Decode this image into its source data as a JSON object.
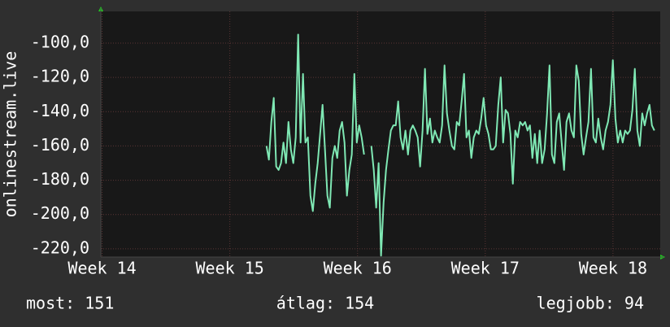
{
  "chart_data": {
    "type": "line",
    "ylabel": "onlinestream.live",
    "footer": [
      "most: 151",
      "átlag: 154",
      "legjobb: 94"
    ],
    "xlim": [
      13.99,
      18.37
    ],
    "ylim": [
      -224.8,
      -81.5
    ],
    "xticks": [
      {
        "value": 14,
        "label": "Week 14"
      },
      {
        "value": 15,
        "label": "Week 15"
      },
      {
        "value": 16,
        "label": "Week 16"
      },
      {
        "value": 17,
        "label": "Week 17"
      },
      {
        "value": 18,
        "label": "Week 18"
      }
    ],
    "yticks": [
      {
        "value": -100,
        "label": "-100,0"
      },
      {
        "value": -120,
        "label": "-120,0"
      },
      {
        "value": -140,
        "label": "-140,0"
      },
      {
        "value": -160,
        "label": "-160,0"
      },
      {
        "value": -180,
        "label": "-180,0"
      },
      {
        "value": -200,
        "label": "-200,0"
      },
      {
        "value": -220,
        "label": "-220,0"
      }
    ],
    "grid": true,
    "x": [
      15.287,
      15.306,
      15.325,
      15.344,
      15.363,
      15.382,
      15.401,
      15.42,
      15.44,
      15.459,
      15.478,
      15.497,
      15.516,
      15.535,
      15.554,
      15.573,
      15.592,
      15.611,
      15.631,
      15.65,
      15.669,
      15.688,
      15.707,
      15.726,
      15.745,
      15.764,
      15.783,
      15.803,
      15.822,
      15.841,
      15.86,
      15.879,
      15.898,
      15.917,
      15.936,
      15.955,
      15.975,
      15.994,
      16.013,
      16.032,
      16.051,
      16.083,
      16.108,
      16.127,
      16.146,
      16.165,
      16.184,
      16.204,
      16.223,
      16.242,
      16.261,
      16.28,
      16.299,
      16.318,
      16.337,
      16.356,
      16.375,
      16.395,
      16.414,
      16.433,
      16.452,
      16.471,
      16.49,
      16.509,
      16.528,
      16.547,
      16.567,
      16.586,
      16.605,
      16.624,
      16.643,
      16.662,
      16.681,
      16.7,
      16.719,
      16.739,
      16.758,
      16.777,
      16.796,
      16.815,
      16.834,
      16.853,
      16.872,
      16.891,
      16.91,
      16.93,
      16.949,
      16.968,
      16.987,
      17.006,
      17.025,
      17.044,
      17.063,
      17.082,
      17.102,
      17.121,
      17.14,
      17.159,
      17.178,
      17.197,
      17.216,
      17.235,
      17.254,
      17.273,
      17.293,
      17.312,
      17.331,
      17.35,
      17.369,
      17.388,
      17.407,
      17.426,
      17.445,
      17.465,
      17.484,
      17.503,
      17.522,
      17.541,
      17.56,
      17.579,
      17.598,
      17.617,
      17.636,
      17.656,
      17.675,
      17.694,
      17.713,
      17.732,
      17.751,
      17.77,
      17.789,
      17.808,
      17.828,
      17.847,
      17.866,
      17.885,
      17.904,
      17.923,
      17.942,
      17.961,
      17.98,
      17.999,
      18.019,
      18.038,
      18.057,
      18.076,
      18.095,
      18.114,
      18.133,
      18.152,
      18.171,
      18.191,
      18.21,
      18.229,
      18.248,
      18.267,
      18.286,
      18.305,
      18.324
    ],
    "series": [
      {
        "color": "#7fe8b4",
        "values": [
          -160,
          -168,
          -146,
          -132,
          -172,
          -174,
          -170,
          -158,
          -170,
          -146,
          -162,
          -170,
          -155,
          -95,
          -158,
          -118,
          -158,
          -155,
          -189,
          -198,
          -182,
          -170,
          -153,
          -136,
          -162,
          -189,
          -196,
          -167,
          -160,
          -167,
          -151,
          -146,
          -158,
          -189,
          -174,
          -165,
          -118,
          -158,
          -148,
          -155,
          -165,
          null,
          -160,
          -174,
          -196,
          -170,
          -224,
          -193,
          -174,
          -162,
          -151,
          -148,
          -148,
          -134,
          -155,
          -162,
          -151,
          -165,
          -151,
          -148,
          -151,
          -155,
          -172,
          -151,
          -115,
          -153,
          -144,
          -158,
          -151,
          -155,
          -158,
          -148,
          -113,
          -141,
          -151,
          -160,
          -162,
          -146,
          -148,
          -134,
          -118,
          -155,
          -151,
          -167,
          -155,
          -151,
          -153,
          -144,
          -132,
          -148,
          -153,
          -162,
          -162,
          -160,
          -136,
          -120,
          -158,
          -139,
          -141,
          -153,
          -182,
          -151,
          -155,
          -146,
          -148,
          -146,
          -151,
          -148,
          -167,
          -153,
          -170,
          -151,
          -170,
          -162,
          -141,
          -113,
          -165,
          -170,
          -146,
          -141,
          -158,
          -174,
          -146,
          -141,
          -151,
          -155,
          -113,
          -122,
          -153,
          -165,
          -155,
          -146,
          -115,
          -155,
          -158,
          -144,
          -155,
          -162,
          -151,
          -146,
          -136,
          -110,
          -144,
          -158,
          -151,
          -158,
          -151,
          -153,
          -151,
          -139,
          -115,
          -151,
          -160,
          -141,
          -148,
          -141,
          -136,
          -148,
          -151
        ]
      }
    ]
  }
}
